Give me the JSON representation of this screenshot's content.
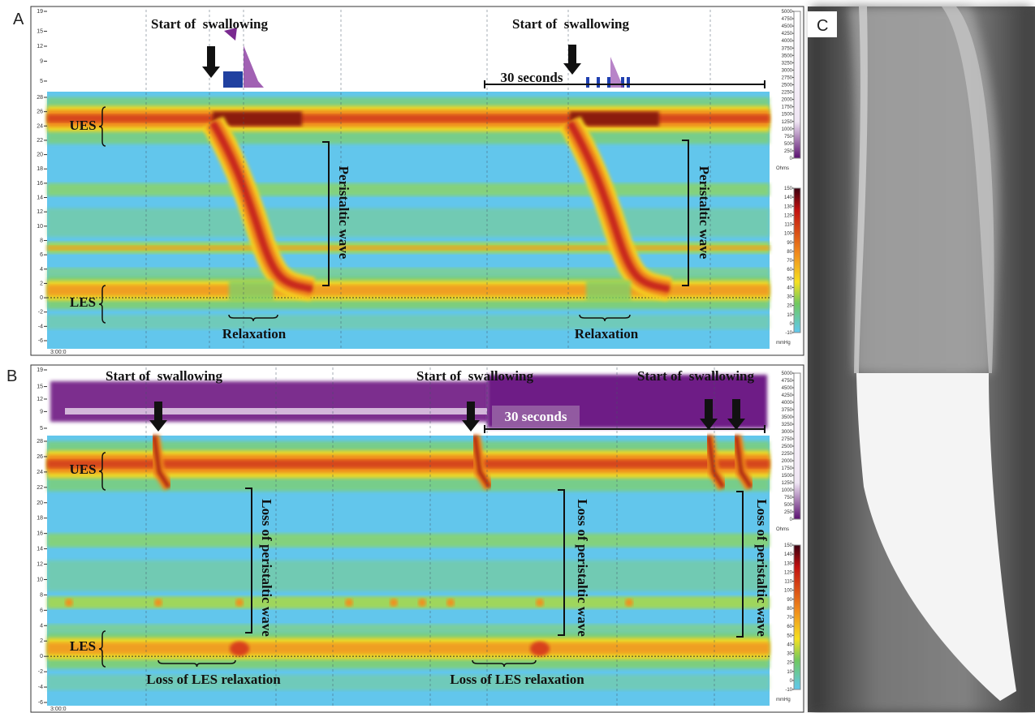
{
  "panel_a": {
    "label": "A",
    "start_labels": [
      "Start of  swallowing",
      "Start of  swallowing"
    ],
    "duration": "30 seconds",
    "ues": "UES",
    "les": "LES",
    "wave_labels": [
      "Peristaltic wave",
      "Peristaltic wave"
    ],
    "relaxation_labels": [
      "Relaxation",
      "Relaxation"
    ],
    "time": "3:00:0"
  },
  "panel_b": {
    "label": "B",
    "start_labels": [
      "Start of  swallowing",
      "Start of  swallowing",
      "Start of  swallowing"
    ],
    "duration": "30 seconds",
    "ues": "UES",
    "les": "LES",
    "wave_labels": [
      "Loss of peristaltic wave",
      "Loss of peristaltic wave",
      "Loss of peristaltic wave"
    ],
    "relaxation_labels": [
      "Loss of LES relaxation",
      "Loss of LES relaxation"
    ],
    "time": "3:00:0"
  },
  "panel_c": {
    "label": "C"
  },
  "axes": {
    "pressure_ticks": [
      28,
      26,
      24,
      22,
      20,
      18,
      16,
      14,
      12,
      10,
      8,
      6,
      4,
      2,
      0,
      -2,
      -4,
      -6
    ],
    "impedance_ticks": [
      19,
      15,
      12,
      9,
      5
    ],
    "impedance_scale": [
      5000,
      4750,
      4500,
      4250,
      4000,
      3750,
      3500,
      3250,
      3000,
      2750,
      2500,
      2250,
      2000,
      1750,
      1500,
      1250,
      1000,
      750,
      500,
      250,
      0
    ],
    "impedance_unit": "Ohms",
    "pressure_scale": [
      150,
      140,
      130,
      120,
      110,
      100,
      90,
      80,
      70,
      60,
      50,
      40,
      30,
      20,
      10,
      0,
      -10
    ],
    "pressure_unit": "mmHg"
  }
}
